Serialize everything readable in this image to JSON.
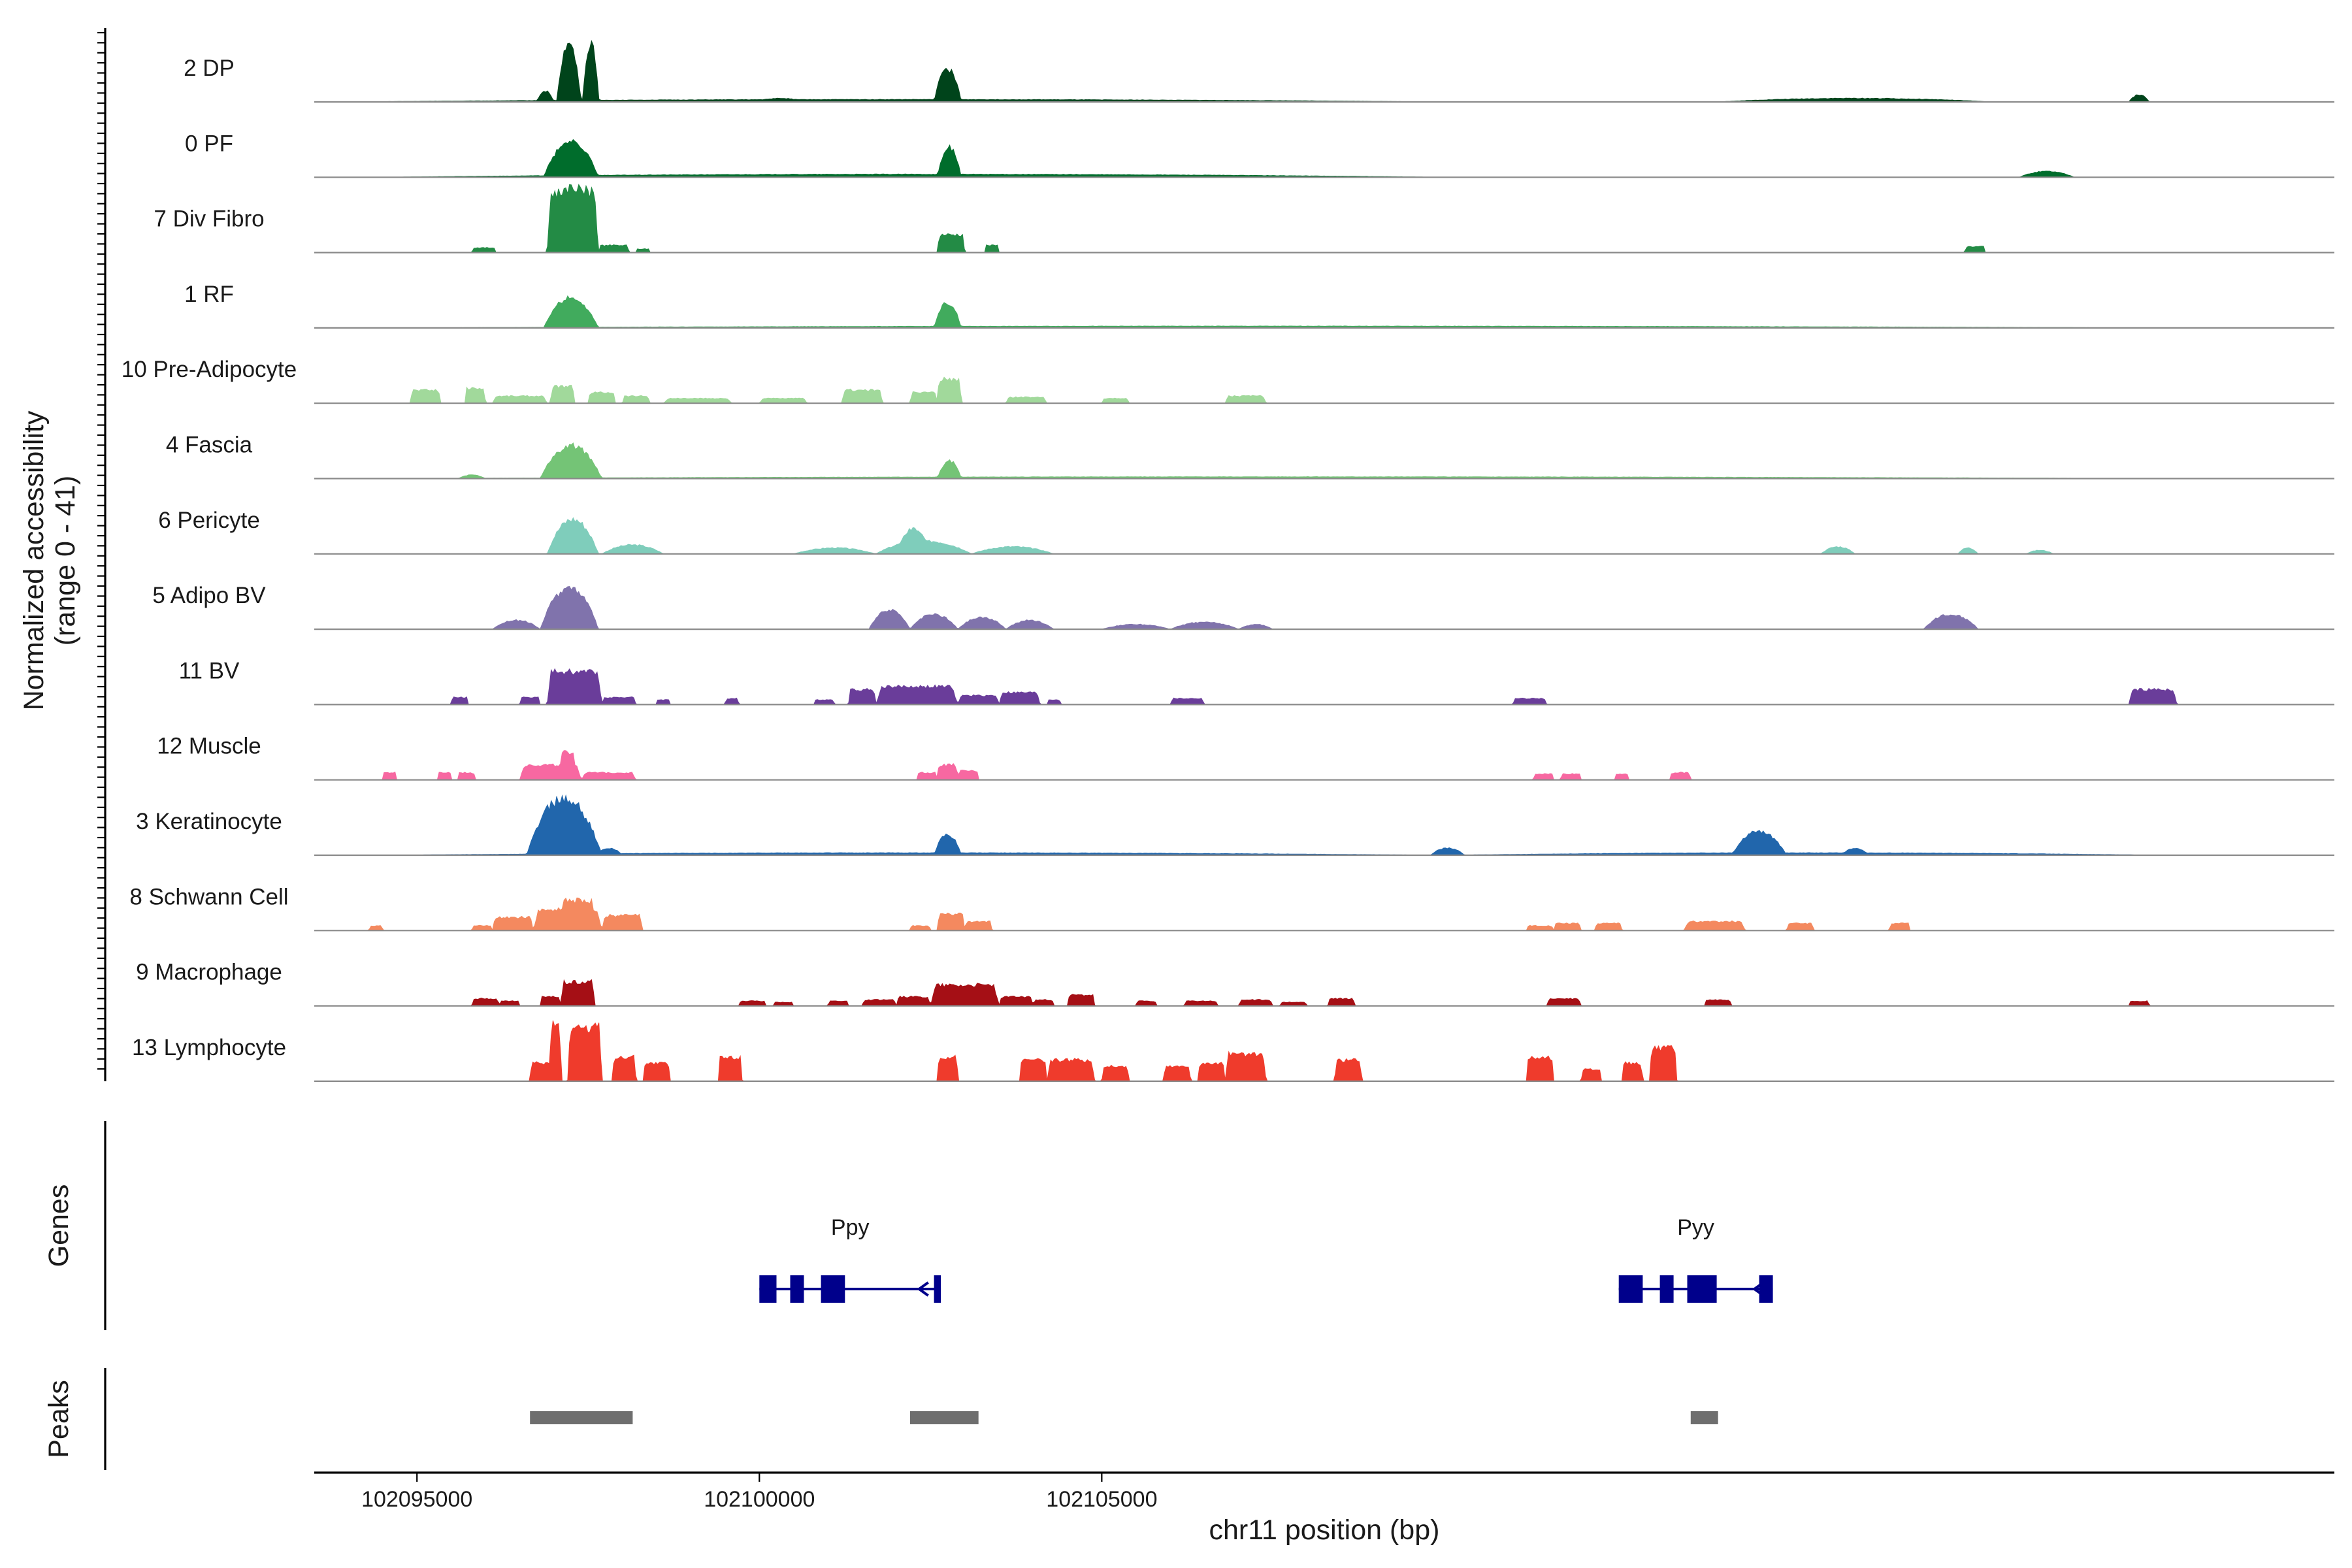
{
  "chart_data": {
    "type": "area",
    "ylabel": [
      "Normalized accessibility",
      "(range 0 - 41)"
    ],
    "y_range": [
      0,
      41
    ],
    "xlabel": "chr11 position (bp)",
    "x_range": [
      102093500,
      102123000
    ],
    "x_ticks": [
      102095000,
      102100000,
      102105000
    ],
    "x_tick_labels": [
      "102095000",
      "102100000",
      "102105000"
    ],
    "genes_label": "Genes",
    "peaks_label": "Peaks",
    "tracks": [
      {
        "name": "2 DP",
        "color": "#00441b",
        "continuous": true,
        "peaks": [
          [
            102097040,
            102097400,
            0.95
          ],
          [
            102097420,
            102097660,
            1.0
          ],
          [
            102096750,
            102097000,
            0.18
          ],
          [
            102102550,
            102102950,
            0.55
          ],
          [
            102099900,
            102100700,
            0.06
          ],
          [
            102094000,
            102110000,
            0.04
          ],
          [
            102114000,
            102118000,
            0.06
          ],
          [
            102120000,
            102120300,
            0.12
          ]
        ]
      },
      {
        "name": "0 PF",
        "color": "#006d2c",
        "continuous": true,
        "peaks": [
          [
            102096850,
            102097650,
            0.6
          ],
          [
            102102600,
            102102950,
            0.5
          ],
          [
            102094500,
            102110000,
            0.05
          ],
          [
            102118400,
            102119200,
            0.1
          ]
        ]
      },
      {
        "name": "7 Div Fibro",
        "color": "#238b45",
        "continuous": false,
        "peaks": [
          [
            102096900,
            102097650,
            1.0
          ],
          [
            102097100,
            102097500,
            1.05
          ],
          [
            102095800,
            102096150,
            0.08
          ],
          [
            102097650,
            102098100,
            0.12
          ],
          [
            102098200,
            102098400,
            0.06
          ],
          [
            102102600,
            102103000,
            0.3
          ],
          [
            102103300,
            102103500,
            0.12
          ],
          [
            102117600,
            102117900,
            0.1
          ]
        ]
      },
      {
        "name": "1 RF",
        "color": "#41ab5d",
        "continuous": true,
        "peaks": [
          [
            102096850,
            102097650,
            0.5
          ],
          [
            102102550,
            102102950,
            0.42
          ],
          [
            102094500,
            102120500,
            0.03
          ]
        ]
      },
      {
        "name": "10 Pre-Adipocyte",
        "color": "#a1d99b",
        "continuous": false,
        "peaks": [
          [
            102094900,
            102095350,
            0.22
          ],
          [
            102095700,
            102096000,
            0.25
          ],
          [
            102096100,
            102096900,
            0.12
          ],
          [
            102096950,
            102097300,
            0.28
          ],
          [
            102097500,
            102097900,
            0.18
          ],
          [
            102098000,
            102098400,
            0.12
          ],
          [
            102098600,
            102099600,
            0.08
          ],
          [
            102100000,
            102100700,
            0.08
          ],
          [
            102101200,
            102101800,
            0.22
          ],
          [
            102102200,
            102102600,
            0.18
          ],
          [
            102102600,
            102102950,
            0.4
          ],
          [
            102103600,
            102104200,
            0.1
          ],
          [
            102105000,
            102105400,
            0.08
          ],
          [
            102106800,
            102107400,
            0.12
          ]
        ]
      },
      {
        "name": "4 Fascia",
        "color": "#74c476",
        "continuous": true,
        "peaks": [
          [
            102096800,
            102097700,
            0.55
          ],
          [
            102102600,
            102102950,
            0.3
          ],
          [
            102095600,
            102096000,
            0.06
          ],
          [
            102094500,
            102120500,
            0.03
          ]
        ]
      },
      {
        "name": "6 Pericyte",
        "color": "#7fcdbb",
        "continuous": true,
        "peaks": [
          [
            102096900,
            102097650,
            0.58
          ],
          [
            102097700,
            102098600,
            0.15
          ],
          [
            102100500,
            102101700,
            0.1
          ],
          [
            102101700,
            102103100,
            0.22
          ],
          [
            102102000,
            102102500,
            0.42
          ],
          [
            102103100,
            102104300,
            0.12
          ],
          [
            102115500,
            102116000,
            0.12
          ],
          [
            102117500,
            102117800,
            0.1
          ],
          [
            102118500,
            102118900,
            0.06
          ]
        ]
      },
      {
        "name": "5 Adipo BV",
        "color": "#8073ac",
        "continuous": true,
        "peaks": [
          [
            102096100,
            102096800,
            0.15
          ],
          [
            102096800,
            102097650,
            0.7
          ],
          [
            102101600,
            102102200,
            0.32
          ],
          [
            102102200,
            102102900,
            0.25
          ],
          [
            102102900,
            102103600,
            0.2
          ],
          [
            102103600,
            102104300,
            0.15
          ],
          [
            102105000,
            102106000,
            0.08
          ],
          [
            102106000,
            102107000,
            0.12
          ],
          [
            102107000,
            102107500,
            0.08
          ],
          [
            102117000,
            102117800,
            0.25
          ]
        ]
      },
      {
        "name": "11 BV",
        "color": "#6a3d9a",
        "continuous": false,
        "peaks": [
          [
            102095500,
            102095750,
            0.12
          ],
          [
            102096500,
            102096800,
            0.12
          ],
          [
            102096900,
            102097700,
            0.55
          ],
          [
            102097700,
            102098200,
            0.12
          ],
          [
            102098500,
            102098700,
            0.08
          ],
          [
            102099500,
            102099700,
            0.1
          ],
          [
            102100800,
            102101100,
            0.08
          ],
          [
            102101300,
            102101700,
            0.25
          ],
          [
            102101700,
            102102900,
            0.3
          ],
          [
            102102900,
            102103500,
            0.15
          ],
          [
            102103500,
            102104100,
            0.2
          ],
          [
            102104200,
            102104400,
            0.08
          ],
          [
            102106000,
            102106500,
            0.1
          ],
          [
            102111000,
            102111500,
            0.1
          ],
          [
            102120000,
            102120700,
            0.25
          ]
        ]
      },
      {
        "name": "12 Muscle",
        "color": "#f768a1",
        "continuous": false,
        "peaks": [
          [
            102094500,
            102094700,
            0.12
          ],
          [
            102095300,
            102095500,
            0.12
          ],
          [
            102095600,
            102095850,
            0.12
          ],
          [
            102096500,
            102097400,
            0.25
          ],
          [
            102097100,
            102097300,
            0.45
          ],
          [
            102097400,
            102098200,
            0.12
          ],
          [
            102102300,
            102102600,
            0.12
          ],
          [
            102102600,
            102102900,
            0.25
          ],
          [
            102102900,
            102103200,
            0.15
          ],
          [
            102111300,
            102111600,
            0.1
          ],
          [
            102111700,
            102112000,
            0.1
          ],
          [
            102112500,
            102112700,
            0.1
          ],
          [
            102113300,
            102113600,
            0.12
          ]
        ]
      },
      {
        "name": "3 Keratinocyte",
        "color": "#2166ac",
        "continuous": true,
        "peaks": [
          [
            102096600,
            102097700,
            0.95
          ],
          [
            102096800,
            102097000,
            0.9
          ],
          [
            102097600,
            102098000,
            0.12
          ],
          [
            102102550,
            102102950,
            0.35
          ],
          [
            102094500,
            102110000,
            0.04
          ],
          [
            102109800,
            102110300,
            0.12
          ],
          [
            102114200,
            102115000,
            0.4
          ],
          [
            102115800,
            102116200,
            0.12
          ],
          [
            102110000,
            102120500,
            0.04
          ]
        ]
      },
      {
        "name": "8 Schwann Cell",
        "color": "#f4895f",
        "continuous": false,
        "peaks": [
          [
            102094300,
            102094500,
            0.08
          ],
          [
            102095800,
            102096100,
            0.08
          ],
          [
            102096100,
            102096700,
            0.22
          ],
          [
            102096700,
            102097700,
            0.35
          ],
          [
            102097100,
            102097600,
            0.5
          ],
          [
            102097700,
            102098300,
            0.25
          ],
          [
            102102200,
            102102500,
            0.08
          ],
          [
            102102600,
            102103000,
            0.28
          ],
          [
            102103000,
            102103400,
            0.15
          ],
          [
            102111200,
            102111600,
            0.08
          ],
          [
            102111600,
            102112000,
            0.12
          ],
          [
            102112200,
            102112600,
            0.12
          ],
          [
            102113500,
            102114400,
            0.15
          ],
          [
            102115000,
            102115400,
            0.12
          ],
          [
            102116500,
            102116800,
            0.12
          ]
        ]
      },
      {
        "name": "9 Macrophage",
        "color": "#a50f15",
        "continuous": false,
        "peaks": [
          [
            102095800,
            102096200,
            0.12
          ],
          [
            102096200,
            102096500,
            0.08
          ],
          [
            102096800,
            102097100,
            0.15
          ],
          [
            102097100,
            102097600,
            0.4
          ],
          [
            102099700,
            102100100,
            0.08
          ],
          [
            102100200,
            102100500,
            0.06
          ],
          [
            102101000,
            102101300,
            0.08
          ],
          [
            102101500,
            102102000,
            0.1
          ],
          [
            102102000,
            102102500,
            0.15
          ],
          [
            102102500,
            102103500,
            0.35
          ],
          [
            102103500,
            102104000,
            0.15
          ],
          [
            102104000,
            102104300,
            0.1
          ],
          [
            102104500,
            102104900,
            0.18
          ],
          [
            102105500,
            102105800,
            0.08
          ],
          [
            102106200,
            102106700,
            0.08
          ],
          [
            102107000,
            102107500,
            0.1
          ],
          [
            102107600,
            102108000,
            0.06
          ],
          [
            102108300,
            102108700,
            0.12
          ],
          [
            102111500,
            102112000,
            0.12
          ],
          [
            102113800,
            102114200,
            0.1
          ],
          [
            102120000,
            102120300,
            0.08
          ]
        ]
      },
      {
        "name": "13 Lymphocyte",
        "color": "#ef3b2c",
        "continuous": false,
        "peaks": [
          [
            102096650,
            102097000,
            0.3
          ],
          [
            102096950,
            102097100,
            0.95
          ],
          [
            102097200,
            102097700,
            0.9
          ],
          [
            102097850,
            102098200,
            0.4
          ],
          [
            102098300,
            102098700,
            0.3
          ],
          [
            102099400,
            102099750,
            0.4
          ],
          [
            102102600,
            102102900,
            0.4
          ],
          [
            102103800,
            102104200,
            0.35
          ],
          [
            102104200,
            102104900,
            0.35
          ],
          [
            102105000,
            102105400,
            0.25
          ],
          [
            102105900,
            102106300,
            0.25
          ],
          [
            102106400,
            102106800,
            0.3
          ],
          [
            102106800,
            102107400,
            0.45
          ],
          [
            102108400,
            102108800,
            0.35
          ],
          [
            102111200,
            102111600,
            0.4
          ],
          [
            102112000,
            102112300,
            0.2
          ],
          [
            102112600,
            102112900,
            0.3
          ],
          [
            102113000,
            102113400,
            0.55
          ]
        ]
      }
    ],
    "genes": [
      {
        "name": "Ppy",
        "strand": "-",
        "color": "#00008b",
        "start": 102100000,
        "end": 102102650,
        "exons": [
          [
            102100000,
            102100250
          ],
          [
            102100450,
            102100650
          ],
          [
            102100900,
            102101250
          ],
          [
            102102550,
            102102650
          ]
        ]
      },
      {
        "name": "Pyy",
        "strand": "-",
        "color": "#00008b",
        "start": 102112550,
        "end": 102114800,
        "exons": [
          [
            102112550,
            102112900
          ],
          [
            102113150,
            102113350
          ],
          [
            102113550,
            102113980
          ],
          [
            102114600,
            102114800
          ]
        ]
      }
    ],
    "peak_regions": [
      [
        102096650,
        102098150
      ],
      [
        102102200,
        102103200
      ],
      [
        102113600,
        102114000
      ]
    ],
    "peak_color": "#6e6e6e"
  }
}
